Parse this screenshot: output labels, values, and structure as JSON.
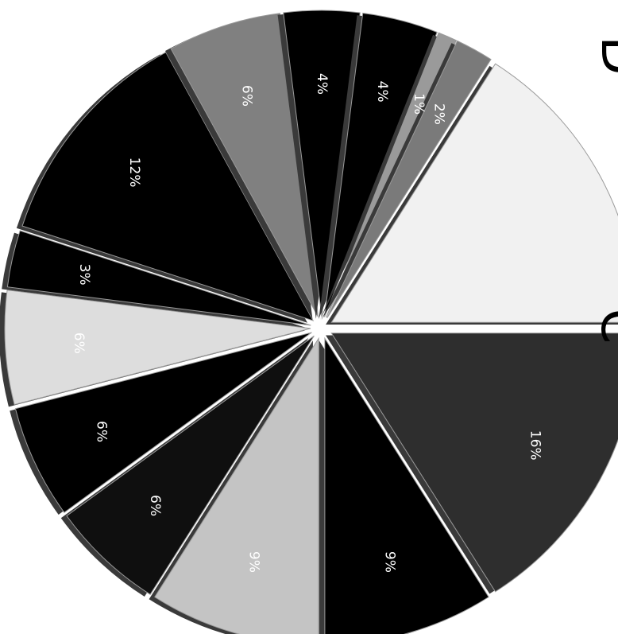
{
  "chart_data": {
    "type": "pie",
    "exploded": true,
    "labels_rotated_quarter_turn": true,
    "legend": "none",
    "title": "",
    "edge_text": [
      "D",
      "C"
    ],
    "slices": [
      {
        "label": "16%",
        "value": 16,
        "color": "#2e2e2e",
        "text_color": "#ffffff"
      },
      {
        "label": "9%",
        "value": 9,
        "color": "#000000",
        "text_color": "#ffffff"
      },
      {
        "label": "9%",
        "value": 9,
        "color": "#c4c4c4",
        "text_color": "#ffffff"
      },
      {
        "label": "6%",
        "value": 6,
        "color": "#0f0f0f",
        "text_color": "#ffffff"
      },
      {
        "label": "6%",
        "value": 6,
        "color": "#000000",
        "text_color": "#ffffff"
      },
      {
        "label": "6%",
        "value": 6,
        "color": "#dddddd",
        "text_color": "#ffffff"
      },
      {
        "label": "3%",
        "value": 3,
        "color": "#000000",
        "text_color": "#ffffff"
      },
      {
        "label": "12%",
        "value": 12,
        "color": "#000000",
        "text_color": "#ffffff"
      },
      {
        "label": "6%",
        "value": 6,
        "color": "#808080",
        "text_color": "#ffffff"
      },
      {
        "label": "4%",
        "value": 4,
        "color": "#000000",
        "text_color": "#ffffff"
      },
      {
        "label": "4%",
        "value": 4,
        "color": "#000000",
        "text_color": "#ffffff"
      },
      {
        "label": "1%",
        "value": 1,
        "color": "#9a9a9a",
        "text_color": "#ffffff"
      },
      {
        "label": "2%",
        "value": 2,
        "color": "#7a7a7a",
        "text_color": "#ffffff"
      },
      {
        "label": "",
        "value": 16,
        "color": "#f1f1f1",
        "text_color": "#ffffff"
      }
    ]
  }
}
